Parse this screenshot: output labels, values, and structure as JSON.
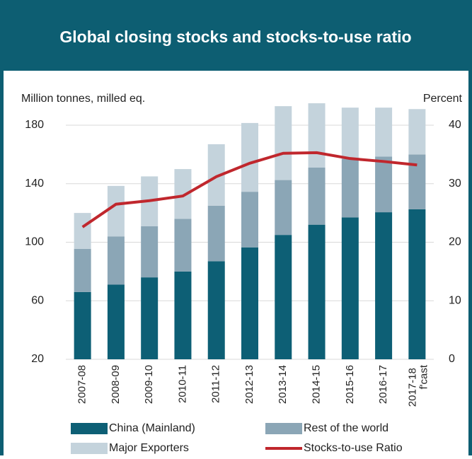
{
  "chart_data": {
    "type": "bar",
    "title": "Global closing stocks and stocks-to-use ratio",
    "y_label": "Million tonnes, milled eq.",
    "y2_label": "Percent",
    "categories": [
      "2007-08",
      "2008-09",
      "2009-10",
      "2010-11",
      "2011-12",
      "2012-13",
      "2013-14",
      "2014-15",
      "2015-16",
      "2016-17",
      "2017-18 f'cast"
    ],
    "series": [
      {
        "name": "China (Mainland)",
        "color": "#0d5f75",
        "values": [
          46,
          51,
          56,
          60,
          67,
          76.5,
          85,
          92,
          97,
          100.5,
          102.5
        ]
      },
      {
        "name": "Rest of the world",
        "color": "#8ba6b6",
        "values": [
          29.5,
          33,
          35,
          36,
          38,
          38,
          37.5,
          39,
          40,
          38,
          37.5
        ]
      },
      {
        "name": "Major Exporters",
        "color": "#c4d3dc",
        "values": [
          24.5,
          34.5,
          34,
          34,
          42,
          47,
          50.5,
          44,
          35,
          33.5,
          31
        ]
      },
      {
        "name": "Stocks-to-use Ratio",
        "color": "#c0272d",
        "type": "line",
        "axis": "y2",
        "values": [
          22.6,
          26.5,
          27.1,
          27.9,
          31.2,
          33.5,
          35.2,
          35.3,
          34.3,
          33.8,
          33.2
        ]
      }
    ],
    "ylim": [
      20,
      180
    ],
    "yticks": [
      20,
      60,
      100,
      140,
      180
    ],
    "y2lim": [
      0,
      40
    ],
    "y2ticks": [
      0,
      10,
      20,
      30,
      40
    ],
    "grid": true
  }
}
